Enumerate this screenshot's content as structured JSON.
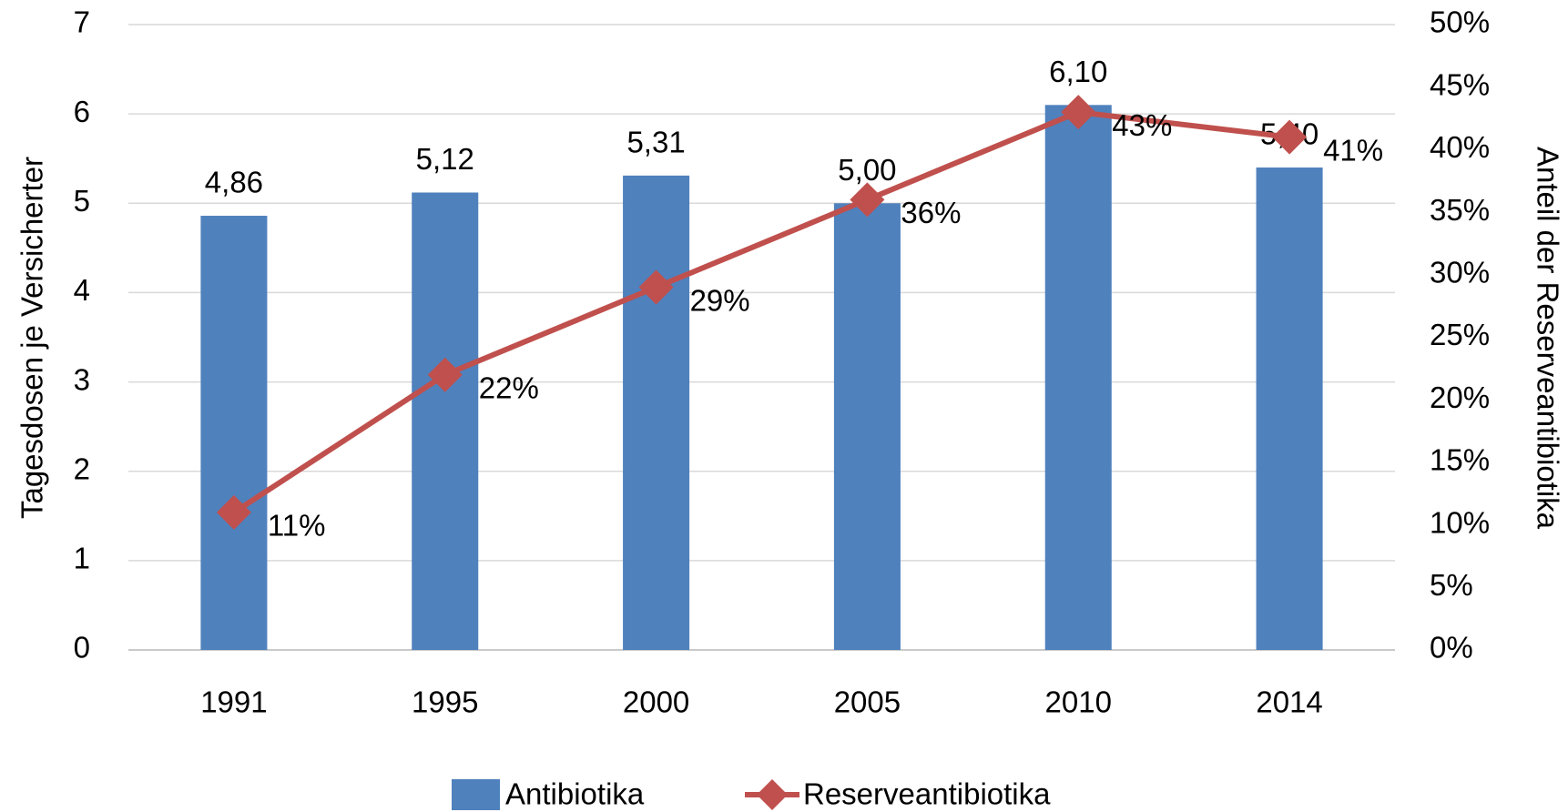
{
  "chart_data": {
    "type": "bar",
    "categories": [
      "1991",
      "1995",
      "2000",
      "2005",
      "2010",
      "2014"
    ],
    "series": [
      {
        "name": "Antibiotika",
        "type": "bar",
        "color": "#4f81bd",
        "values": [
          4.86,
          5.12,
          5.31,
          5.0,
          6.1,
          5.4
        ],
        "value_labels": [
          "4,86",
          "5,12",
          "5,31",
          "5,00",
          "6,10",
          "5,40"
        ]
      },
      {
        "name": "Reserveantibiotika",
        "type": "line",
        "axis": "y2",
        "color": "#c0504d",
        "values": [
          11,
          22,
          29,
          36,
          43,
          41
        ],
        "value_labels": [
          "11%",
          "22%",
          "29%",
          "36%",
          "43%",
          "41%"
        ]
      }
    ],
    "ylabel": "Tagesdosen je Versicherter",
    "y2label": "Anteil der Reserveantibiotika",
    "ylim": [
      0,
      7
    ],
    "yticks": [
      0,
      1,
      2,
      3,
      4,
      5,
      6,
      7
    ],
    "y2lim": [
      0,
      50
    ],
    "y2ticks": [
      {
        "value": 0,
        "label": "0%"
      },
      {
        "value": 5,
        "label": "5%"
      },
      {
        "value": 10,
        "label": "10%"
      },
      {
        "value": 15,
        "label": "15%"
      },
      {
        "value": 20,
        "label": "20%"
      },
      {
        "value": 25,
        "label": "25%"
      },
      {
        "value": 30,
        "label": "30%"
      },
      {
        "value": 35,
        "label": "35%"
      },
      {
        "value": 40,
        "label": "40%"
      },
      {
        "value": 45,
        "label": "45%"
      },
      {
        "value": 50,
        "label": "50%"
      }
    ],
    "grid": true,
    "legend": "bottom"
  }
}
